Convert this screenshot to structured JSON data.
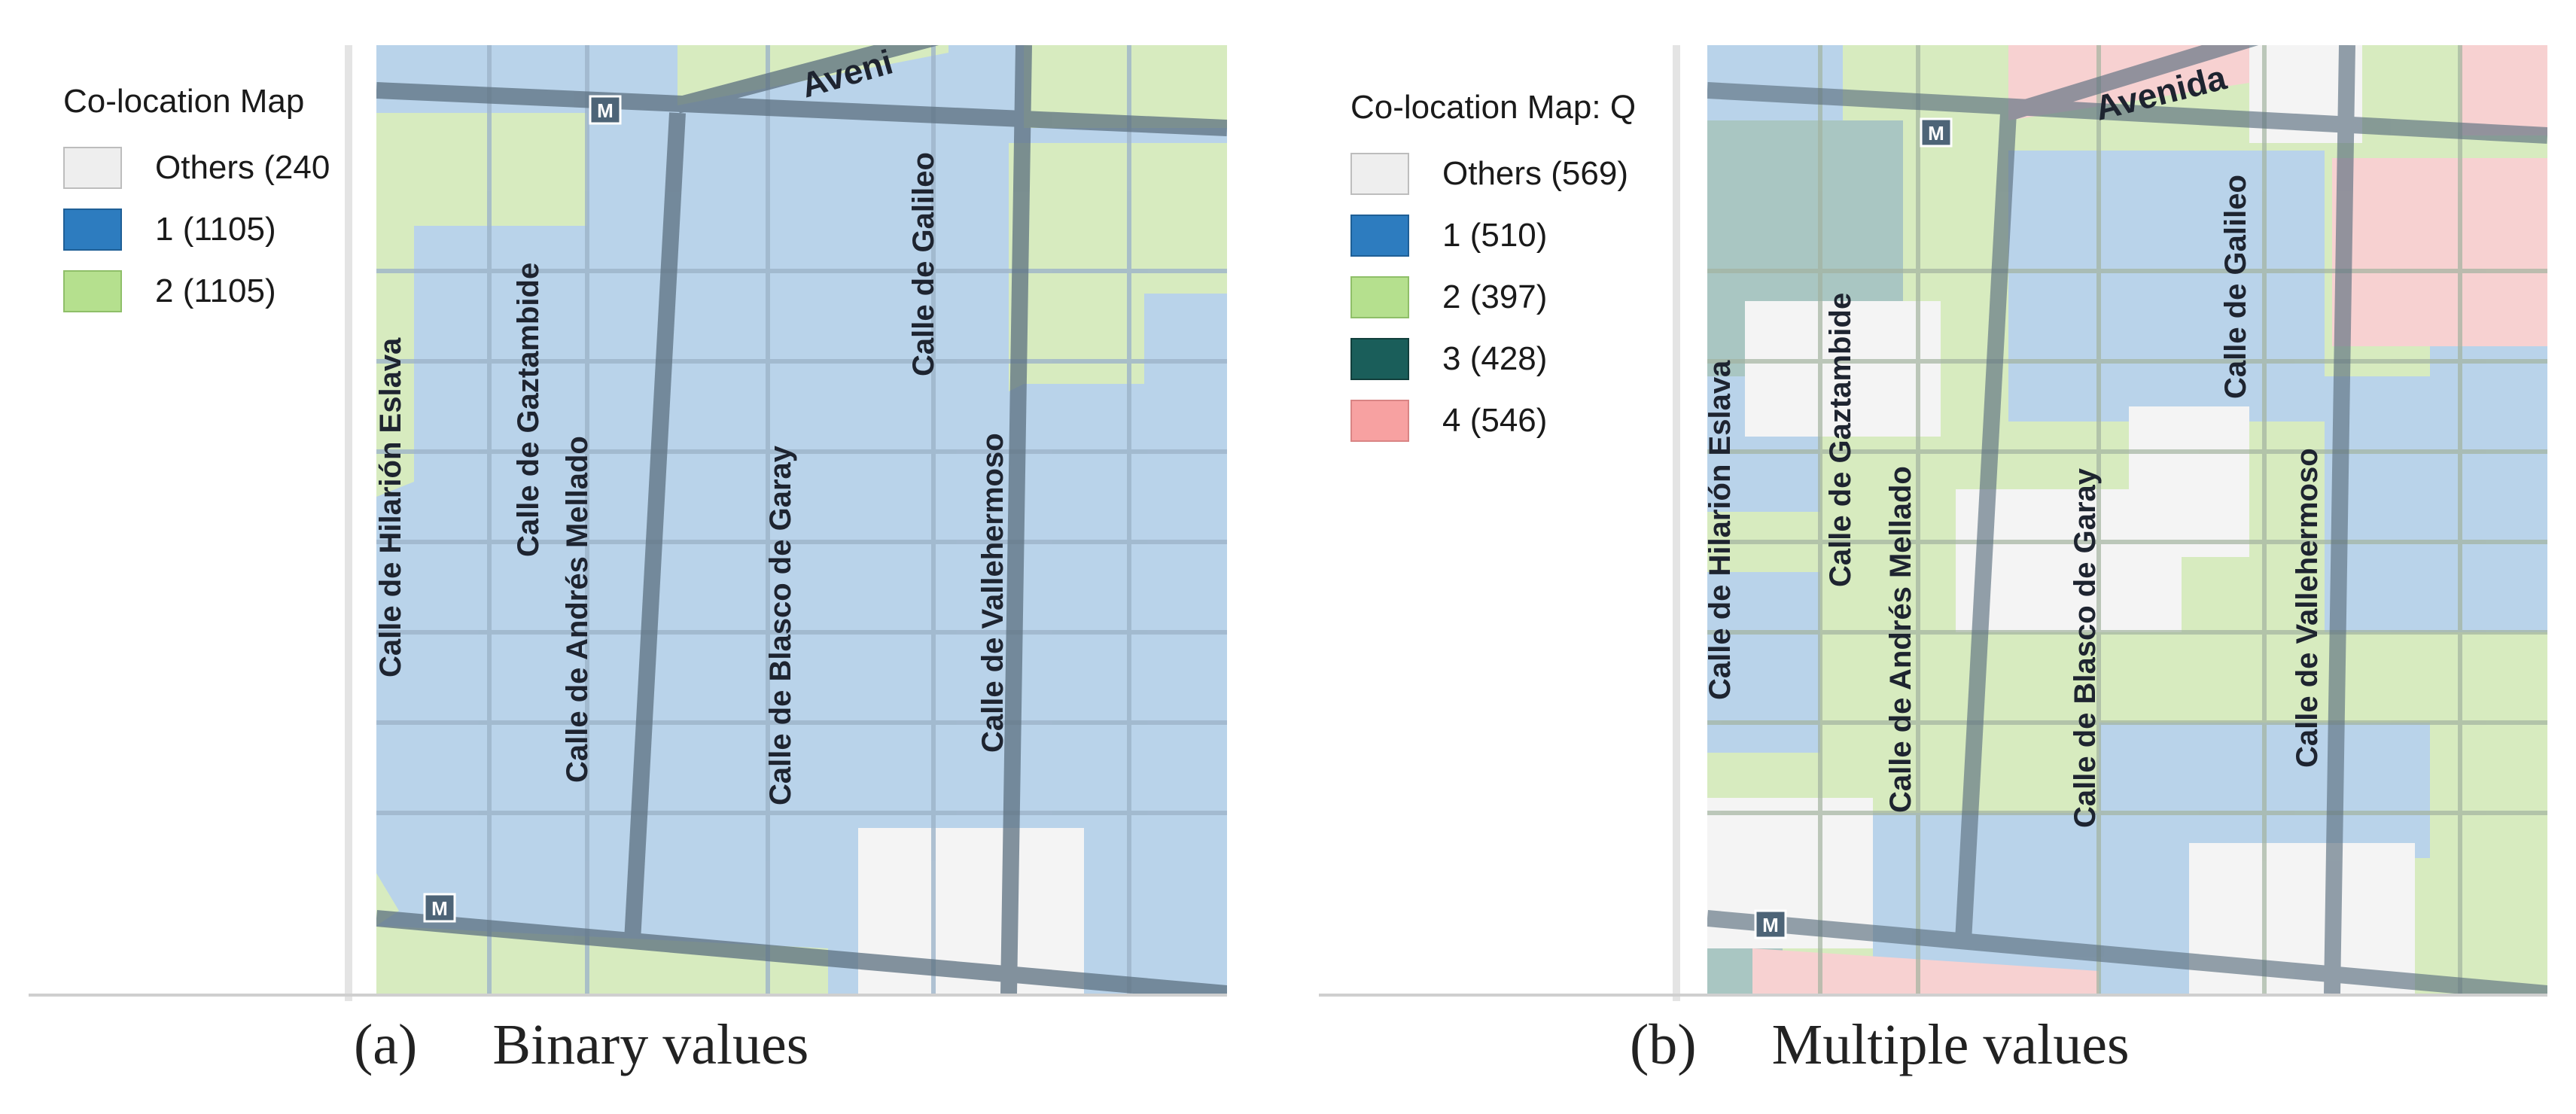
{
  "colors": {
    "others": "#eeeeee",
    "c1": "#2d7cbf",
    "c2": "#b5e08e",
    "c3": "#1a5e5a",
    "c4": "#f7a1a1",
    "road": "#5c7080",
    "blue_block": "#b9d3ea",
    "green_block": "#d7ebbf",
    "teal_block": "#a9c6c2",
    "pink_block": "#f7d1d1",
    "white_block": "#f4f4f4"
  },
  "panel_a": {
    "legend_title": "Co-location Map",
    "legend": [
      {
        "label": "Others (240",
        "color": "#eeeeee"
      },
      {
        "label": "1 (1105)",
        "color": "#2d7cbf"
      },
      {
        "label": "2 (1105)",
        "color": "#b5e08e"
      }
    ],
    "streets": {
      "avenida": "Aveni",
      "eslava": "Calle de Hilarión Eslava",
      "gaztambide": "Calle de Gaztambide",
      "andres": "Calle de Andrés Mellado",
      "blasco": "Calle de Blasco de Garay",
      "galileo": "Calle de Galileo",
      "vallehermoso": "Calle de Vallehermoso",
      "metro": "M"
    },
    "caption_tag": "(a)",
    "caption_text": "Binary values"
  },
  "panel_b": {
    "legend_title": "Co-location Map: Q",
    "legend": [
      {
        "label": "Others (569)",
        "color": "#eeeeee"
      },
      {
        "label": "1 (510)",
        "color": "#2d7cbf"
      },
      {
        "label": "2 (397)",
        "color": "#b5e08e"
      },
      {
        "label": "3 (428)",
        "color": "#1a5e5a"
      },
      {
        "label": "4 (546)",
        "color": "#f7a1a1"
      }
    ],
    "streets": {
      "avenida": "Avenida",
      "eslava": "Calle de Hilarión Eslava",
      "gaztambide": "Calle de Gaztambide",
      "andres": "Calle de Andrés Mellado",
      "blasco": "Calle de Blasco de Garay",
      "galileo": "Calle de Galileo",
      "vallehermoso": "Calle de Vallehermoso",
      "metro": "M"
    },
    "caption_tag": "(b)",
    "caption_text": "Multiple values"
  }
}
